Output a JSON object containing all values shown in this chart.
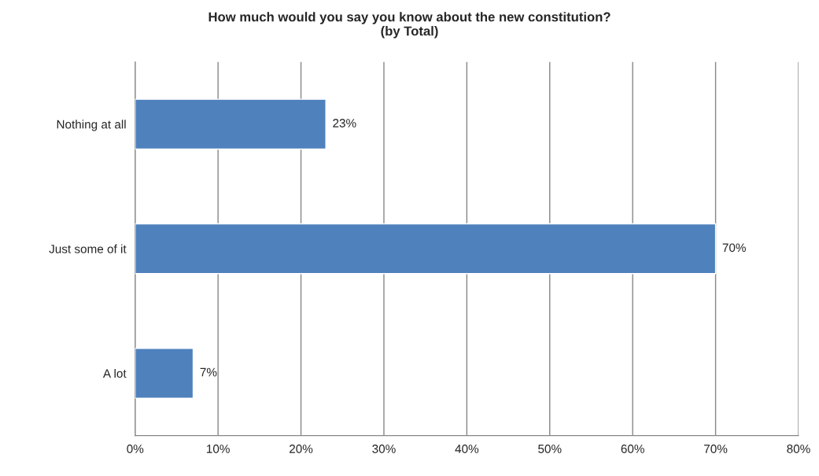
{
  "chart_data": {
    "type": "bar",
    "orientation": "horizontal",
    "title": "How much would you say you know about the new constitution?\n(by Total)",
    "categories": [
      "Nothing at all",
      "Just some of it",
      "A lot"
    ],
    "values": [
      23,
      70,
      7
    ],
    "value_labels": [
      "23%",
      "70%",
      "7%"
    ],
    "color": "#4f81bd",
    "xlim": [
      0,
      80
    ],
    "xticks": [
      {
        "value": 0,
        "label": "0%"
      },
      {
        "value": 10,
        "label": "10%"
      },
      {
        "value": 20,
        "label": "20%"
      },
      {
        "value": 30,
        "label": "30%"
      },
      {
        "value": 40,
        "label": "40%"
      },
      {
        "value": 50,
        "label": "50%"
      },
      {
        "value": 60,
        "label": "60%"
      },
      {
        "value": 70,
        "label": "70%"
      },
      {
        "value": 80,
        "label": "80%"
      }
    ],
    "grid": "x",
    "legend": false
  }
}
